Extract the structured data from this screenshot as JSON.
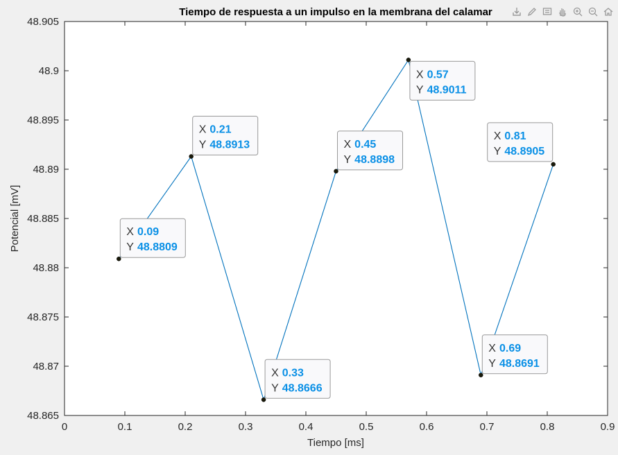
{
  "toolbar": {
    "buttons": [
      {
        "name": "export-icon"
      },
      {
        "name": "brush-icon"
      },
      {
        "name": "datatip-icon"
      },
      {
        "name": "pan-hand-icon"
      },
      {
        "name": "zoom-in-icon"
      },
      {
        "name": "zoom-out-icon"
      },
      {
        "name": "home-icon"
      }
    ]
  },
  "chart_data": {
    "type": "line",
    "title": "Tiempo de respuesta a un impulso en la membrana del calamar",
    "xlabel": "Tiempo [ms]",
    "ylabel": "Potencial [mV]",
    "xlim": [
      0,
      0.9
    ],
    "ylim": [
      48.865,
      48.905
    ],
    "xticks": [
      "0",
      "0.1",
      "0.2",
      "0.3",
      "0.4",
      "0.5",
      "0.6",
      "0.7",
      "0.8",
      "0.9"
    ],
    "yticks": [
      "48.865",
      "48.87",
      "48.875",
      "48.88",
      "48.885",
      "48.89",
      "48.895",
      "48.9",
      "48.905"
    ],
    "grid": false,
    "series": [
      {
        "x": [
          0.09,
          0.21,
          0.33,
          0.45,
          0.57,
          0.69,
          0.81
        ],
        "y": [
          48.8809,
          48.8913,
          48.8666,
          48.8898,
          48.9011,
          48.8691,
          48.8905
        ]
      }
    ],
    "datatips": [
      {
        "x_label": "X",
        "y_label": "Y",
        "x_text": "0.09",
        "y_text": "48.8809",
        "placement": "above-right"
      },
      {
        "x_label": "X",
        "y_label": "Y",
        "x_text": "0.21",
        "y_text": "48.8913",
        "placement": "above-right"
      },
      {
        "x_label": "X",
        "y_label": "Y",
        "x_text": "0.33",
        "y_text": "48.8666",
        "placement": "above-right"
      },
      {
        "x_label": "X",
        "y_label": "Y",
        "x_text": "0.45",
        "y_text": "48.8898",
        "placement": "above-right"
      },
      {
        "x_label": "X",
        "y_label": "Y",
        "x_text": "0.57",
        "y_text": "48.9011",
        "placement": "below-right"
      },
      {
        "x_label": "X",
        "y_label": "Y",
        "x_text": "0.69",
        "y_text": "48.8691",
        "placement": "above-right"
      },
      {
        "x_label": "X",
        "y_label": "Y",
        "x_text": "0.81",
        "y_text": "48.8905",
        "placement": "above-left"
      }
    ],
    "colors": {
      "line": "#0072bd",
      "marker": "#1a1a0a",
      "datatip_value": "#0a90e6",
      "datatip_label": "#333333",
      "axes": "#262626",
      "plot_bg": "#ffffff"
    }
  }
}
